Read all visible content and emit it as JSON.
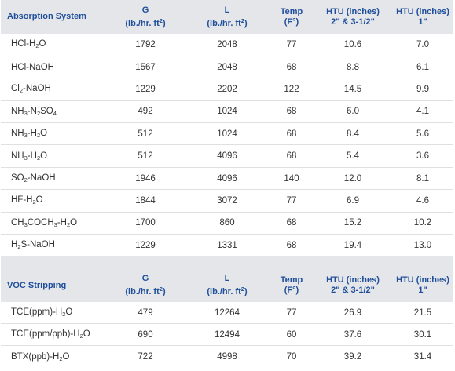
{
  "absorption": {
    "headers": {
      "system": "Absorption System",
      "g": "G",
      "g_unit": "(lb./hr. ft",
      "g_unit_sup": "2",
      "g_unit_end": ")",
      "l": "L",
      "l_unit": "(lb./hr. ft",
      "l_unit_sup": "2",
      "l_unit_end": ")",
      "temp": "Temp",
      "temp_unit": "(F°)",
      "htu1": "HTU (inches)",
      "htu1_sub": "2\" & 3-1/2\"",
      "htu2": "HTU (inches)",
      "htu2_sub": "1\""
    },
    "rows": [
      {
        "sys_parts": [
          "HCl-H",
          "2",
          "O"
        ],
        "g": "1792",
        "l": "2048",
        "temp": "77",
        "htu1": "10.6",
        "htu2": "7.0"
      },
      {
        "sys_parts": [
          "HCl-NaOH"
        ],
        "g": "1567",
        "l": "2048",
        "temp": "68",
        "htu1": "8.8",
        "htu2": "6.1"
      },
      {
        "sys_parts": [
          "Cl",
          "2",
          "-NaOH"
        ],
        "g": "1229",
        "l": "2202",
        "temp": "122",
        "htu1": "14.5",
        "htu2": "9.9"
      },
      {
        "sys_parts": [
          "NH",
          "3",
          "-N",
          "2",
          "SO",
          "4",
          ""
        ],
        "g": "492",
        "l": "1024",
        "temp": "68",
        "htu1": "6.0",
        "htu2": "4.1"
      },
      {
        "sys_parts": [
          "NH",
          "3",
          "-H",
          "2",
          "O"
        ],
        "g": "512",
        "l": "1024",
        "temp": "68",
        "htu1": "8.4",
        "htu2": "5.6"
      },
      {
        "sys_parts": [
          "NH",
          "3",
          "-H",
          "2",
          "O"
        ],
        "g": "512",
        "l": "4096",
        "temp": "68",
        "htu1": "5.4",
        "htu2": "3.6"
      },
      {
        "sys_parts": [
          "SO",
          "2",
          "-NaOH"
        ],
        "g": "1946",
        "l": "4096",
        "temp": "140",
        "htu1": "12.0",
        "htu2": "8.1"
      },
      {
        "sys_parts": [
          "HF-H",
          "2",
          "O"
        ],
        "g": "1844",
        "l": "3072",
        "temp": "77",
        "htu1": "6.9",
        "htu2": "4.6"
      },
      {
        "sys_parts": [
          "CH",
          "3",
          "COCH",
          "3",
          "-H",
          "2",
          "O"
        ],
        "g": "1700",
        "l": "860",
        "temp": "68",
        "htu1": "15.2",
        "htu2": "10.2"
      },
      {
        "sys_parts": [
          "H",
          "2",
          "S-NaOH"
        ],
        "g": "1229",
        "l": "1331",
        "temp": "68",
        "htu1": "19.4",
        "htu2": "13.0"
      }
    ]
  },
  "voc": {
    "headers": {
      "system": "VOC Stripping",
      "g": "G",
      "g_unit": "(lb./hr. ft",
      "g_unit_sup": "2",
      "g_unit_end": ")",
      "l": "L",
      "l_unit": "(lb./hr. ft",
      "l_unit_sup": "2",
      "l_unit_end": ")",
      "temp": "Temp",
      "temp_unit": "(F°)",
      "htu1": "HTU (inches)",
      "htu1_sub": "2\" & 3-1/2\"",
      "htu2": "HTU (inches)",
      "htu2_sub": "1\""
    },
    "rows": [
      {
        "sys_parts": [
          "TCE(ppm)-H",
          "2",
          "O"
        ],
        "g": "479",
        "l": "12264",
        "temp": "77",
        "htu1": "26.9",
        "htu2": "21.5"
      },
      {
        "sys_parts": [
          "TCE(ppm/ppb)-H",
          "2",
          "O"
        ],
        "g": "690",
        "l": "12494",
        "temp": "60",
        "htu1": "37.6",
        "htu2": "30.1"
      },
      {
        "sys_parts": [
          "BTX(ppb)-H",
          "2",
          "O"
        ],
        "g": "722",
        "l": "4998",
        "temp": "70",
        "htu1": "39.2",
        "htu2": "31.4"
      }
    ]
  }
}
